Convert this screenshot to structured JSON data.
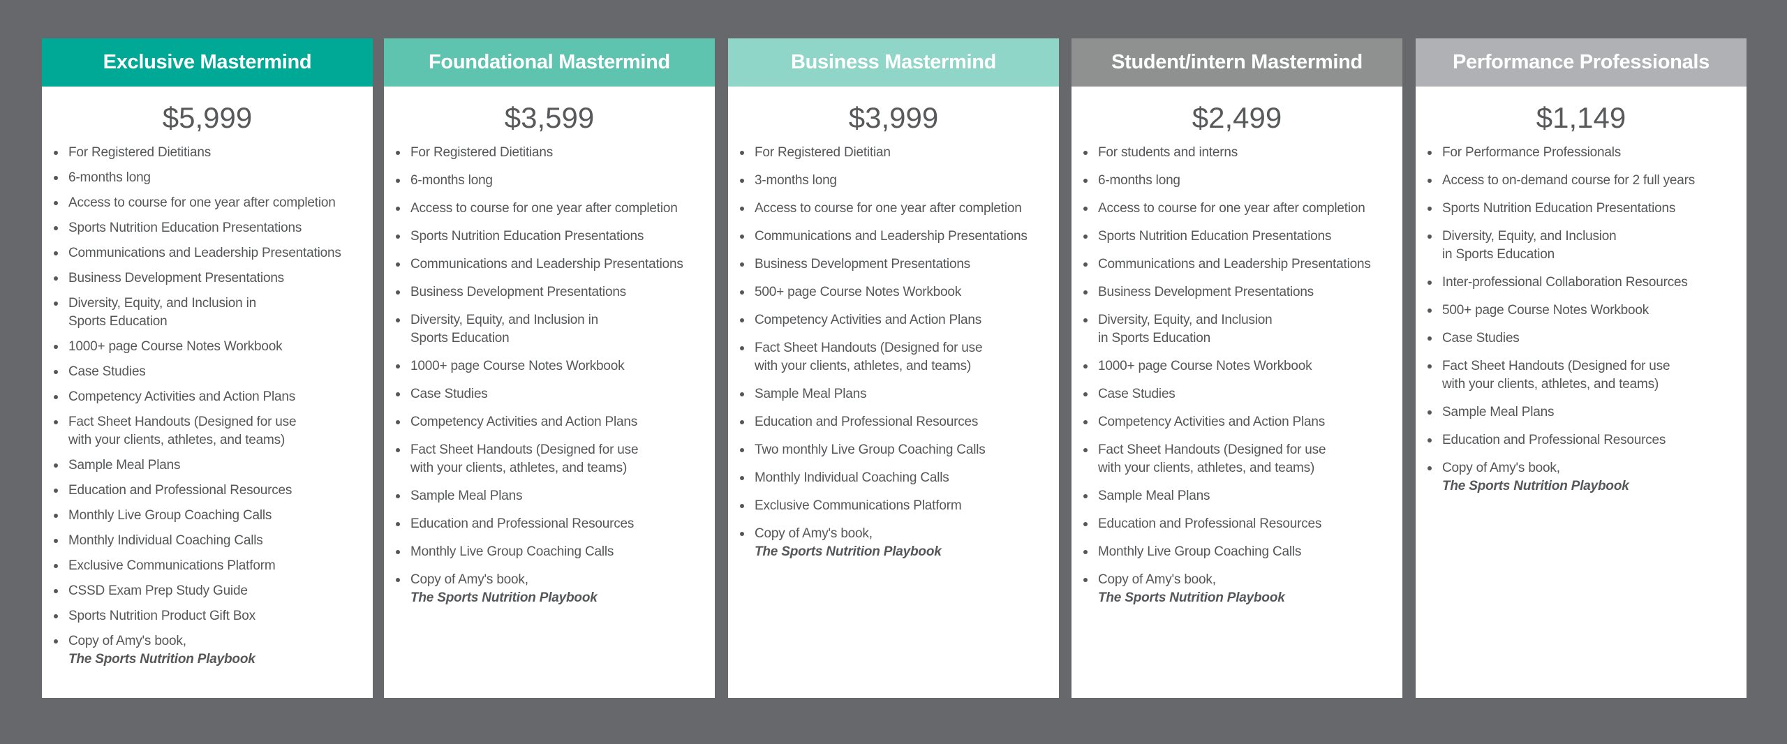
{
  "colors": {
    "background": "#67686c",
    "header_1": "#00a896",
    "header_2": "#5ec4b0",
    "header_3": "#8fd5c8",
    "header_4": "#8f9090",
    "header_5": "#b0b1b4",
    "text": "#555658"
  },
  "plans": [
    {
      "title": "Exclusive Mastermind",
      "price": "$5,999",
      "items": [
        "For Registered Dietitians",
        "6-months long",
        "Access to course for one year after completion",
        "Sports Nutrition Education Presentations",
        "Communications and Leadership Presentations",
        "Business Development Presentations",
        "Diversity, Equity, and Inclusion in\nSports Education",
        "1000+ page Course Notes Workbook",
        "Case Studies",
        "Competency Activities and Action Plans",
        "Fact Sheet Handouts (Designed for use\nwith your clients, athletes, and teams)",
        "Sample Meal Plans",
        "Education and Professional Resources",
        "Monthly Live Group Coaching Calls",
        "Monthly Individual Coaching Calls",
        "Exclusive Communications Platform",
        "CSSD Exam Prep Study Guide",
        "Sports Nutrition Product Gift Box"
      ],
      "book_line": "Copy of Amy's book,",
      "book_title": "The Sports Nutrition Playbook"
    },
    {
      "title": "Foundational Mastermind",
      "price": "$3,599",
      "items": [
        "For Registered Dietitians",
        "6-months long",
        "Access to course for one year after completion",
        "Sports Nutrition Education Presentations",
        "Communications and Leadership Presentations",
        "Business Development Presentations",
        "Diversity, Equity, and Inclusion in\nSports Education",
        "1000+ page Course Notes Workbook",
        "Case Studies",
        "Competency Activities and Action Plans",
        "Fact Sheet Handouts (Designed for use\nwith your clients, athletes, and teams)",
        "Sample Meal Plans",
        "Education and Professional Resources",
        "Monthly Live Group Coaching Calls"
      ],
      "book_line": "Copy of Amy's book,",
      "book_title": "The Sports Nutrition Playbook"
    },
    {
      "title": "Business Mastermind",
      "price": "$3,999",
      "items": [
        "For Registered Dietitian",
        "3-months long",
        "Access to course for one year after completion",
        "Communications and Leadership Presentations",
        "Business Development Presentations",
        "500+ page Course Notes Workbook",
        "Competency Activities and Action Plans",
        "Fact Sheet Handouts (Designed for use\nwith your clients, athletes, and teams)",
        "Sample Meal Plans",
        "Education and Professional Resources",
        "Two monthly Live Group Coaching Calls",
        "Monthly Individual Coaching Calls",
        "Exclusive Communications Platform"
      ],
      "book_line": "Copy of Amy's book,",
      "book_title": "The Sports Nutrition Playbook"
    },
    {
      "title": "Student/intern Mastermind",
      "price": "$2,499",
      "items": [
        "For students and interns",
        "6-months long",
        "Access to course for one year after completion",
        "Sports Nutrition Education Presentations",
        "Communications and Leadership Presentations",
        "Business Development Presentations",
        "Diversity, Equity, and Inclusion\n in Sports Education",
        "1000+ page Course Notes Workbook",
        "Case Studies",
        "Competency Activities and Action Plans",
        "Fact Sheet Handouts (Designed for use\nwith your clients, athletes, and teams)",
        "Sample Meal Plans",
        "Education and Professional Resources",
        "Monthly Live Group Coaching Calls"
      ],
      "book_line": "Copy of Amy's book,",
      "book_title": "The Sports Nutrition Playbook"
    },
    {
      "title": "Performance Professionals",
      "price": "$1,149",
      "items": [
        "For Performance Professionals",
        "Access to on-demand course for 2 full years",
        "Sports Nutrition Education Presentations",
        "Diversity, Equity, and Inclusion\nin Sports Education",
        "Inter-professional Collaboration Resources",
        "500+ page Course Notes Workbook",
        "Case Studies",
        "Fact Sheet Handouts (Designed for use\nwith your clients, athletes, and teams)",
        "Sample Meal Plans",
        "Education and Professional Resources"
      ],
      "book_line": "Copy of Amy's book,",
      "book_title": "The Sports Nutrition Playbook"
    }
  ]
}
